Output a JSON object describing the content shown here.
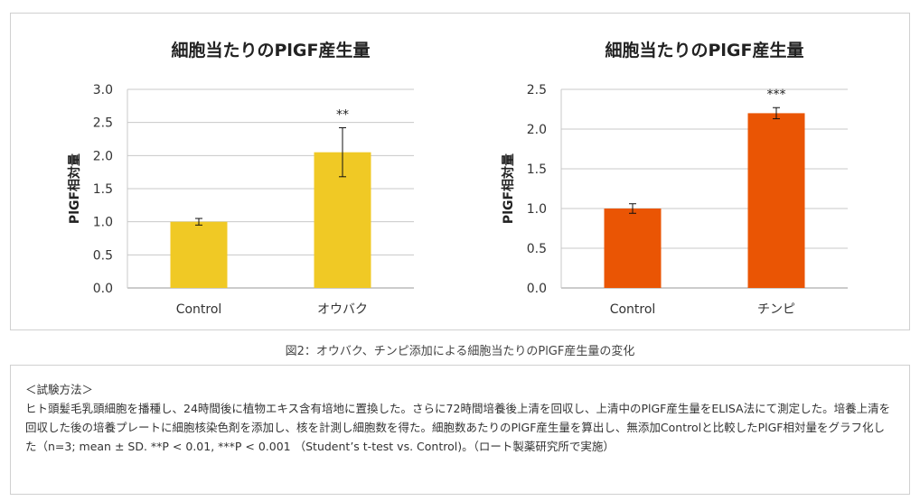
{
  "chart_data": [
    {
      "type": "bar",
      "title": "細胞当たりのPlGF産生量",
      "ylabel": "PlGF相対量",
      "xlabel": "",
      "categories": [
        "Control",
        "オウバク"
      ],
      "values": [
        1.0,
        2.05
      ],
      "errors": [
        0.05,
        0.37
      ],
      "annotations": [
        "",
        "**"
      ],
      "ylim": [
        0,
        3.0
      ],
      "yticks": [
        "0.0",
        "0.5",
        "1.0",
        "1.5",
        "2.0",
        "2.5",
        "3.0"
      ],
      "grid": true,
      "color": "#F0C925"
    },
    {
      "type": "bar",
      "title": "細胞当たりのPlGF産生量",
      "ylabel": "PlGF相対量",
      "xlabel": "",
      "categories": [
        "Control",
        "チンピ"
      ],
      "values": [
        1.0,
        2.2
      ],
      "errors": [
        0.06,
        0.07
      ],
      "annotations": [
        "",
        "***"
      ],
      "ylim": [
        0,
        2.5
      ],
      "yticks": [
        "0.0",
        "0.5",
        "1.0",
        "1.5",
        "2.0",
        "2.5"
      ],
      "grid": true,
      "color": "#EA5504"
    }
  ],
  "caption": "図2：オウバク、チンピ添加による細胞当たりのPlGF産生量の変化",
  "method": {
    "heading": "＜試験方法＞",
    "body": "ヒト頭髪毛乳頭細胞を播種し、24時間後に植物エキス含有培地に置換した。さらに72時間培養後上清を回収し、上清中のPlGF産生量をELISA法にて測定した。培養上清を回収した後の培養プレートに細胞核染色剤を添加し、核を計測し細胞数を得た。細胞数あたりのPlGF産生量を算出し、無添加Controlと比較したPlGF相対量をグラフ化した（n=3; mean ± SD. **P < 0.01, ***P < 0.001 （Student’s t-test vs. Control)。（ロート製薬研究所で実施）"
  }
}
